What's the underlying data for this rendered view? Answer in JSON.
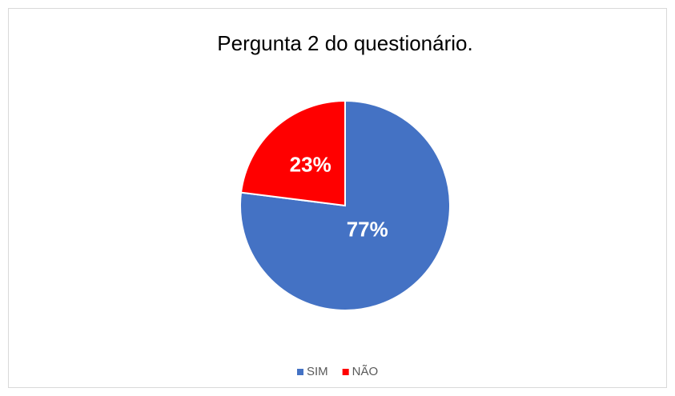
{
  "chart_data": {
    "type": "pie",
    "title": "Pergunta 2 do questionário.",
    "categories": [
      "SIM",
      "NÃO"
    ],
    "values": [
      77,
      23
    ],
    "value_labels": [
      "77%",
      "23%"
    ],
    "colors": [
      "#4472c4",
      "#ff0000"
    ],
    "legend": "bottom"
  }
}
